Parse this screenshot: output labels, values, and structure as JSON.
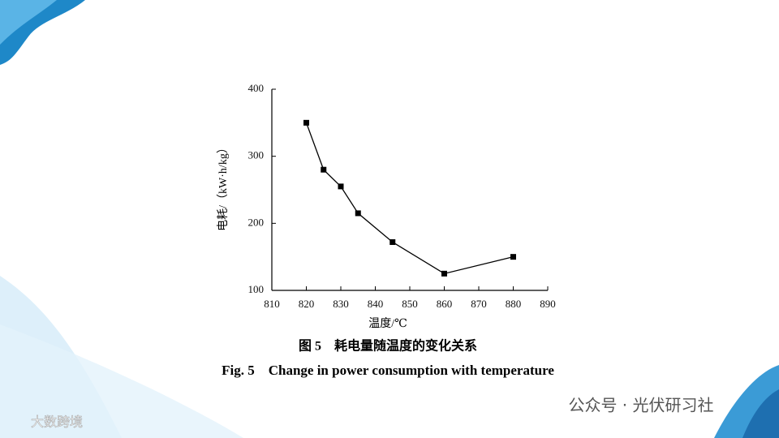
{
  "chart_data": {
    "type": "line",
    "x_label": "温度/℃",
    "y_label": "电耗/（kW·h/kg）",
    "caption_cn": "图 5　耗电量随温度的变化关系",
    "caption_en": "Fig. 5　Change in power consumption with temperature",
    "x": [
      820,
      825,
      830,
      835,
      845,
      860,
      880
    ],
    "series": [
      {
        "color": "#000000",
        "values": [
          350,
          280,
          255,
          215,
          172,
          125,
          150
        ]
      }
    ],
    "xlim": [
      810,
      890
    ],
    "xticks": [
      810,
      820,
      830,
      840,
      850,
      860,
      870,
      880,
      890
    ],
    "ylim": [
      100,
      400
    ],
    "yticks": [
      100,
      200,
      300,
      400
    ],
    "grid": false
  },
  "watermarks": [
    "公众号 · 光伏研习社",
    "大数跨境"
  ]
}
